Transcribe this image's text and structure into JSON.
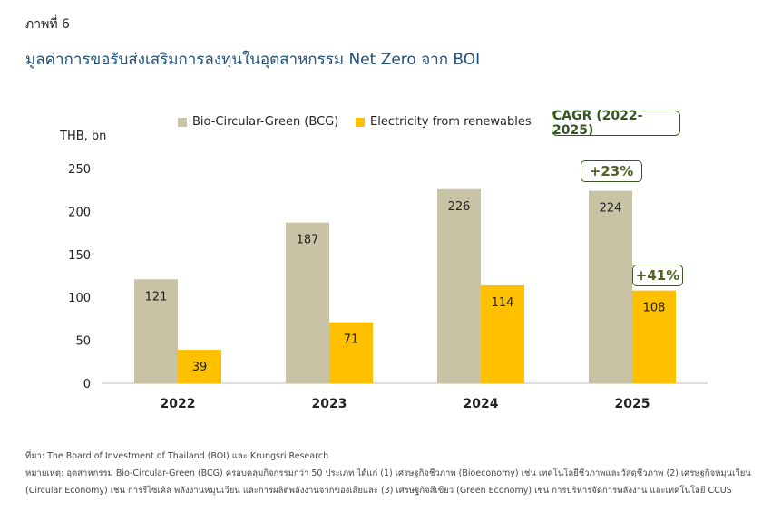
{
  "figure_label": "ภาพที่ 6",
  "title": "มูลค่าการขอรับส่งเสริมการลงทุนในอุตสาหกรรม Net Zero จาก BOI",
  "chart_data": {
    "type": "bar",
    "ylabel": "THB, bn",
    "ylim": [
      0,
      250
    ],
    "yticks": [
      0,
      50,
      100,
      150,
      200,
      250
    ],
    "categories": [
      "2022",
      "2023",
      "2024",
      "2025"
    ],
    "series": [
      {
        "name": "Bio-Circular-Green (BCG)",
        "values": [
          121,
          187,
          226,
          224
        ],
        "color": "#c9c3a5"
      },
      {
        "name": "Electricity from renewables",
        "values": [
          39,
          71,
          114,
          108
        ],
        "color": "#ffc000"
      }
    ],
    "legend": "top",
    "grid": false,
    "annotations": {
      "cagr_label": "CAGR (2022-2025)",
      "bcg_cagr": "+23%",
      "renewables_cagr": "+41%"
    }
  },
  "notes": {
    "source": "ที่มา: The Board of Investment of Thailand (BOI) และ Krungsri Research",
    "remark_line1": "หมายเหตุ: อุตสาหกรรม Bio-Circular-Green (BCG) ครอบคลุมกิจกรรมกว่า 50 ประเภท ได้แก่ (1) เศรษฐกิจชีวภาพ (Bioeconomy) เช่น เทคโนโลยีชีวภาพและวัสดุชีวภาพ (2) เศรษฐกิจหมุนเวียน",
    "remark_line2": "(Circular Economy) เช่น การรีไซเคิล พลังงานหมุนเวียน และการผลิตพลังงานจากของเสียและ (3) เศรษฐกิจสีเขียว (Green Economy) เช่น การบริหารจัดการพลังงาน และเทคโนโลยี CCUS"
  }
}
